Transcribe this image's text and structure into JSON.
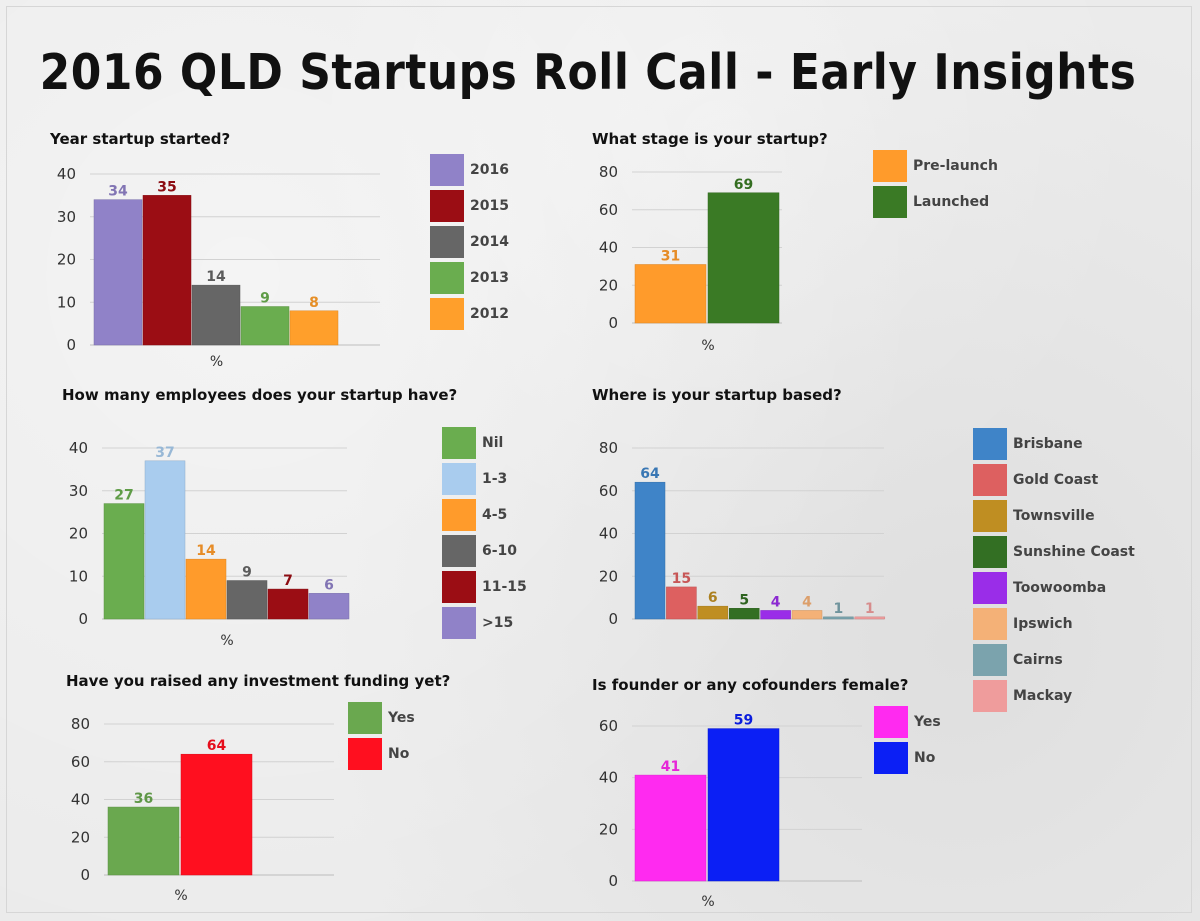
{
  "page": {
    "title": "2016 QLD Startups Roll Call - Early Insights"
  },
  "chart_data": [
    {
      "type": "bar",
      "title": "Year startup started?",
      "xlabel": "%",
      "ylabel": "",
      "ylim": [
        0,
        40
      ],
      "yticks": [
        0,
        10,
        20,
        30,
        40
      ],
      "grid": true,
      "legend": "right",
      "categories": [
        "2016",
        "2015",
        "2014",
        "2013",
        "2012"
      ],
      "values": [
        34,
        35,
        14,
        9,
        8
      ],
      "value_labels": [
        "34",
        "35",
        "14",
        "9",
        "8"
      ],
      "colors": [
        "#9082c8",
        "#9b0d14",
        "#666666",
        "#6aad4f",
        "#ff9f2b"
      ]
    },
    {
      "type": "bar",
      "title": "What stage is your startup?",
      "xlabel": "%",
      "ylabel": "",
      "ylim": [
        0,
        80
      ],
      "yticks": [
        0,
        20,
        40,
        60,
        80
      ],
      "grid": true,
      "legend": "right",
      "categories": [
        "Pre-launch",
        "Launched"
      ],
      "values": [
        31,
        69
      ],
      "value_labels": [
        "31",
        "69"
      ],
      "colors": [
        "#ff9b2b",
        "#3a7a25"
      ]
    },
    {
      "type": "bar",
      "title": "How many employees does your startup have?",
      "xlabel": "%",
      "ylabel": "",
      "ylim": [
        0,
        40
      ],
      "yticks": [
        0,
        10,
        20,
        30,
        40
      ],
      "grid": true,
      "legend": "right",
      "categories": [
        "Nil",
        "1-3",
        "4-5",
        "6-10",
        "11-15",
        ">15"
      ],
      "values": [
        27,
        37,
        14,
        9,
        7,
        6
      ],
      "value_labels": [
        "27",
        "37",
        "14",
        "9",
        "7",
        "6"
      ],
      "colors": [
        "#6aad4f",
        "#a9ccee",
        "#ff9b2b",
        "#666666",
        "#9b0d14",
        "#9082c8"
      ]
    },
    {
      "type": "bar",
      "title": "Where is your startup based?",
      "xlabel": "",
      "ylabel": "",
      "ylim": [
        0,
        80
      ],
      "yticks": [
        0,
        20,
        40,
        60,
        80
      ],
      "grid": true,
      "legend": "right",
      "categories": [
        "Brisbane",
        "Gold Coast",
        "Townsville",
        "Sunshine Coast",
        "Toowoomba",
        "Ipswich",
        "Cairns",
        "Mackay"
      ],
      "values": [
        64,
        15,
        6,
        5,
        4,
        4,
        1,
        1
      ],
      "value_labels": [
        "64",
        "15",
        "6",
        "5",
        "4",
        "4",
        "1",
        "1"
      ],
      "colors": [
        "#3f84c8",
        "#dd6060",
        "#bf8e22",
        "#336f23",
        "#9a2de8",
        "#f4b177",
        "#7ba3ad",
        "#ef9c9c"
      ]
    },
    {
      "type": "bar",
      "title": "Have you raised any investment funding yet?",
      "xlabel": "%",
      "ylabel": "",
      "ylim": [
        0,
        80
      ],
      "yticks": [
        0,
        20,
        40,
        60,
        80
      ],
      "grid": true,
      "legend": "right",
      "categories": [
        "Yes",
        "No"
      ],
      "values": [
        36,
        64
      ],
      "value_labels": [
        "36",
        "64"
      ],
      "colors": [
        "#6aa84f",
        "#ff0f1f"
      ]
    },
    {
      "type": "bar",
      "title": "Is founder or any cofounders female?",
      "xlabel": "%",
      "ylabel": "",
      "ylim": [
        0,
        60
      ],
      "yticks": [
        0,
        20,
        40,
        60
      ],
      "grid": true,
      "legend": "right",
      "categories": [
        "Yes",
        "No"
      ],
      "values": [
        41,
        59
      ],
      "value_labels": [
        "41",
        "59"
      ],
      "colors": [
        "#ff2af0",
        "#0b1ff5"
      ]
    }
  ]
}
